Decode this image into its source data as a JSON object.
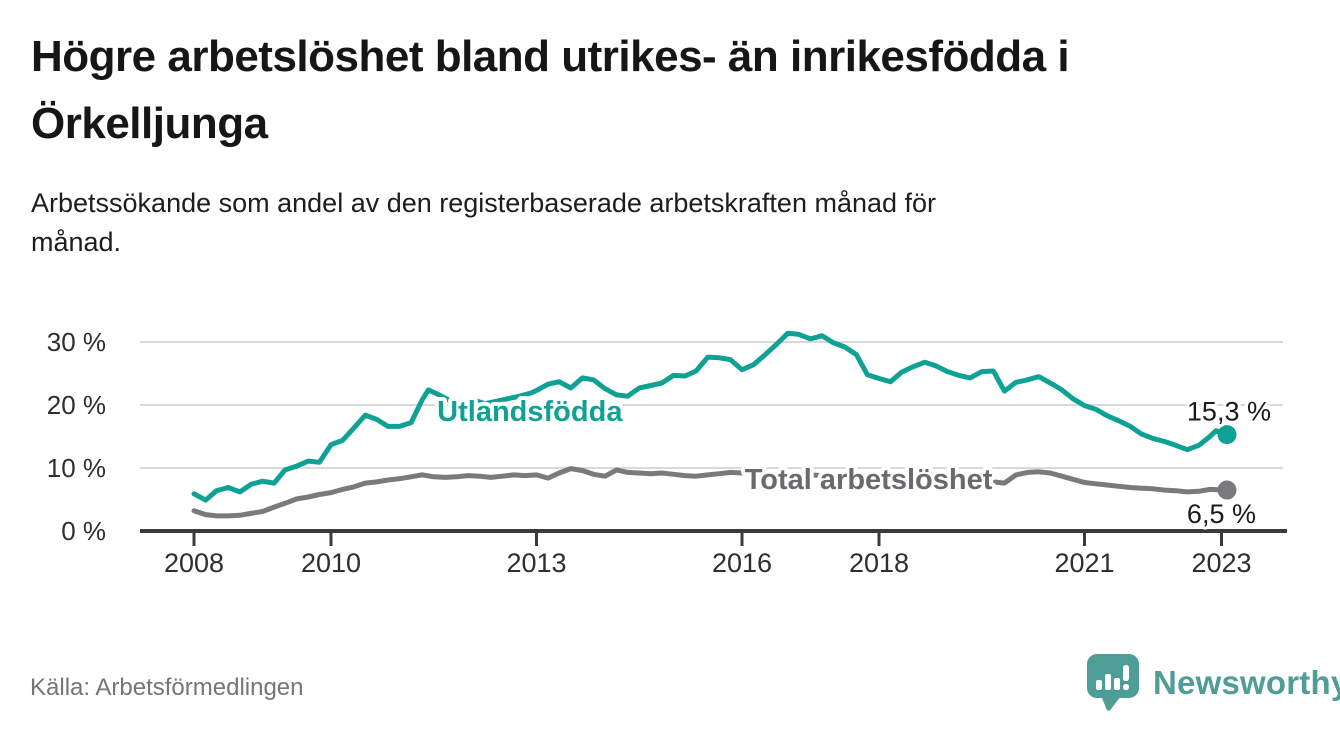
{
  "header": {
    "title": "Högre arbetslöshet bland utrikes- än inrikesfödda i Örkelljunga",
    "title_lines": [
      "Högre arbetslöshet bland utrikes- än inrikesfödda i",
      "Örkelljunga"
    ],
    "subtitle": "Arbetssökande som andel av den registerbaserade arbetskraften månad för månad.",
    "subtitle_lines": [
      "Arbetssökande som andel av den registerbaserade arbetskraften månad för",
      "månad."
    ]
  },
  "footer": {
    "source": "Källa: Arbetsförmedlingen",
    "logo_text": "Newsworthy",
    "logo_color": "#4f9d97"
  },
  "chart_data": {
    "type": "line",
    "unit": "%",
    "grid": "horizontal",
    "colors": {
      "grid": "#d9d9d9",
      "axis": "#3b3b3b",
      "tick_text": "#2e2e2e",
      "value_text": "#1b1b1b",
      "background": "#ffffff"
    },
    "x_axis": {
      "ticks": [
        2008,
        2010,
        2013,
        2016,
        2018,
        2021,
        2023
      ],
      "tick_labels": [
        "2008",
        "2010",
        "2013",
        "2016",
        "2018",
        "2021",
        "2023"
      ],
      "range": [
        2007.9,
        2023.8
      ]
    },
    "y_axis": {
      "ticks": [
        0,
        10,
        20,
        30
      ],
      "tick_labels": [
        "0 %",
        "10 %",
        "20 %",
        "30 %"
      ],
      "range": [
        0,
        33.5
      ]
    },
    "series": [
      {
        "name": "Utlandsfödda",
        "color": "#0FA294",
        "label_color": "#0FA294",
        "label_at": [
          2011.55,
          17.5
        ],
        "end_label": "15,3 %",
        "end_label_side": "above",
        "end_value": 15.3,
        "points": [
          [
            2008.0,
            5.9
          ],
          [
            2008.17,
            4.9
          ],
          [
            2008.33,
            6.4
          ],
          [
            2008.5,
            6.9
          ],
          [
            2008.67,
            6.2
          ],
          [
            2008.83,
            7.4
          ],
          [
            2009.0,
            7.9
          ],
          [
            2009.17,
            7.6
          ],
          [
            2009.33,
            9.7
          ],
          [
            2009.5,
            10.3
          ],
          [
            2009.67,
            11.1
          ],
          [
            2009.83,
            10.9
          ],
          [
            2010.0,
            13.7
          ],
          [
            2010.17,
            14.4
          ],
          [
            2010.33,
            16.3
          ],
          [
            2010.5,
            18.4
          ],
          [
            2010.67,
            17.7
          ],
          [
            2010.83,
            16.6
          ],
          [
            2011.0,
            16.6
          ],
          [
            2011.17,
            17.2
          ],
          [
            2011.33,
            20.8
          ],
          [
            2011.42,
            22.4
          ],
          [
            2011.58,
            21.6
          ],
          [
            2011.75,
            20.6
          ],
          [
            2011.92,
            20.2
          ],
          [
            2012.08,
            20.8
          ],
          [
            2012.25,
            20.2
          ],
          [
            2012.42,
            20.6
          ],
          [
            2012.58,
            21.0
          ],
          [
            2012.75,
            21.4
          ],
          [
            2012.92,
            21.9
          ],
          [
            2013.0,
            22.3
          ],
          [
            2013.17,
            23.3
          ],
          [
            2013.33,
            23.7
          ],
          [
            2013.5,
            22.7
          ],
          [
            2013.67,
            24.3
          ],
          [
            2013.83,
            24.0
          ],
          [
            2014.0,
            22.6
          ],
          [
            2014.17,
            21.6
          ],
          [
            2014.33,
            21.4
          ],
          [
            2014.5,
            22.7
          ],
          [
            2014.67,
            23.1
          ],
          [
            2014.83,
            23.5
          ],
          [
            2015.0,
            24.7
          ],
          [
            2015.17,
            24.6
          ],
          [
            2015.33,
            25.4
          ],
          [
            2015.5,
            27.6
          ],
          [
            2015.67,
            27.5
          ],
          [
            2015.83,
            27.2
          ],
          [
            2016.0,
            25.6
          ],
          [
            2016.17,
            26.4
          ],
          [
            2016.33,
            27.9
          ],
          [
            2016.5,
            29.6
          ],
          [
            2016.67,
            31.4
          ],
          [
            2016.83,
            31.2
          ],
          [
            2017.0,
            30.5
          ],
          [
            2017.17,
            31.0
          ],
          [
            2017.33,
            29.9
          ],
          [
            2017.5,
            29.2
          ],
          [
            2017.67,
            28.0
          ],
          [
            2017.83,
            24.8
          ],
          [
            2018.0,
            24.2
          ],
          [
            2018.17,
            23.7
          ],
          [
            2018.33,
            25.2
          ],
          [
            2018.5,
            26.1
          ],
          [
            2018.67,
            26.8
          ],
          [
            2018.83,
            26.2
          ],
          [
            2019.0,
            25.3
          ],
          [
            2019.17,
            24.7
          ],
          [
            2019.33,
            24.3
          ],
          [
            2019.5,
            25.3
          ],
          [
            2019.67,
            25.4
          ],
          [
            2019.83,
            22.2
          ],
          [
            2020.0,
            23.6
          ],
          [
            2020.17,
            24.0
          ],
          [
            2020.33,
            24.5
          ],
          [
            2020.5,
            23.5
          ],
          [
            2020.67,
            22.4
          ],
          [
            2020.83,
            21.0
          ],
          [
            2021.0,
            19.9
          ],
          [
            2021.17,
            19.3
          ],
          [
            2021.33,
            18.3
          ],
          [
            2021.5,
            17.5
          ],
          [
            2021.67,
            16.6
          ],
          [
            2021.83,
            15.4
          ],
          [
            2022.0,
            14.7
          ],
          [
            2022.17,
            14.2
          ],
          [
            2022.33,
            13.6
          ],
          [
            2022.5,
            12.9
          ],
          [
            2022.67,
            13.6
          ],
          [
            2022.83,
            15.0
          ],
          [
            2022.92,
            15.9
          ],
          [
            2023.08,
            15.3
          ]
        ]
      },
      {
        "name": "Total arbetslöshet",
        "color": "#7A7A7C",
        "label_color": "#6A6A6E",
        "label_at": [
          2016.04,
          6.67
        ],
        "end_label": "6,5 %",
        "end_label_side": "below",
        "end_value": 6.5,
        "points": [
          [
            2008.0,
            3.2
          ],
          [
            2008.17,
            2.6
          ],
          [
            2008.33,
            2.4
          ],
          [
            2008.5,
            2.4
          ],
          [
            2008.67,
            2.5
          ],
          [
            2008.83,
            2.8
          ],
          [
            2009.0,
            3.1
          ],
          [
            2009.17,
            3.8
          ],
          [
            2009.33,
            4.4
          ],
          [
            2009.5,
            5.1
          ],
          [
            2009.67,
            5.4
          ],
          [
            2009.83,
            5.8
          ],
          [
            2010.0,
            6.1
          ],
          [
            2010.17,
            6.6
          ],
          [
            2010.33,
            7.0
          ],
          [
            2010.5,
            7.6
          ],
          [
            2010.67,
            7.8
          ],
          [
            2010.83,
            8.1
          ],
          [
            2011.0,
            8.3
          ],
          [
            2011.17,
            8.6
          ],
          [
            2011.33,
            8.9
          ],
          [
            2011.5,
            8.6
          ],
          [
            2011.67,
            8.5
          ],
          [
            2011.83,
            8.6
          ],
          [
            2012.0,
            8.8
          ],
          [
            2012.17,
            8.7
          ],
          [
            2012.33,
            8.5
          ],
          [
            2012.5,
            8.7
          ],
          [
            2012.67,
            8.9
          ],
          [
            2012.83,
            8.8
          ],
          [
            2013.0,
            8.9
          ],
          [
            2013.17,
            8.4
          ],
          [
            2013.33,
            9.2
          ],
          [
            2013.5,
            9.9
          ],
          [
            2013.67,
            9.6
          ],
          [
            2013.83,
            9.0
          ],
          [
            2014.0,
            8.7
          ],
          [
            2014.17,
            9.7
          ],
          [
            2014.33,
            9.3
          ],
          [
            2014.5,
            9.2
          ],
          [
            2014.67,
            9.1
          ],
          [
            2014.83,
            9.2
          ],
          [
            2015.0,
            9.0
          ],
          [
            2015.17,
            8.8
          ],
          [
            2015.33,
            8.7
          ],
          [
            2015.5,
            8.9
          ],
          [
            2015.67,
            9.1
          ],
          [
            2015.83,
            9.3
          ],
          [
            2016.0,
            9.2
          ],
          [
            2016.17,
            9.0
          ],
          [
            2016.33,
            8.9
          ],
          [
            2016.5,
            9.0
          ],
          [
            2016.67,
            9.1
          ],
          [
            2016.83,
            9.0
          ],
          [
            2017.0,
            8.9
          ],
          [
            2017.17,
            8.8
          ],
          [
            2017.33,
            8.7
          ],
          [
            2017.5,
            8.6
          ],
          [
            2017.67,
            8.5
          ],
          [
            2017.83,
            8.4
          ],
          [
            2018.0,
            8.4
          ],
          [
            2018.17,
            8.3
          ],
          [
            2018.33,
            8.4
          ],
          [
            2018.5,
            8.5
          ],
          [
            2018.67,
            8.4
          ],
          [
            2018.83,
            8.3
          ],
          [
            2019.0,
            8.2
          ],
          [
            2019.17,
            8.1
          ],
          [
            2019.33,
            8.0
          ],
          [
            2019.5,
            7.9
          ],
          [
            2019.67,
            7.8
          ],
          [
            2019.83,
            7.6
          ],
          [
            2020.0,
            8.9
          ],
          [
            2020.17,
            9.3
          ],
          [
            2020.33,
            9.4
          ],
          [
            2020.5,
            9.2
          ],
          [
            2020.67,
            8.7
          ],
          [
            2020.83,
            8.2
          ],
          [
            2021.0,
            7.7
          ],
          [
            2021.17,
            7.5
          ],
          [
            2021.33,
            7.3
          ],
          [
            2021.5,
            7.1
          ],
          [
            2021.67,
            6.9
          ],
          [
            2021.83,
            6.8
          ],
          [
            2022.0,
            6.7
          ],
          [
            2022.17,
            6.5
          ],
          [
            2022.33,
            6.4
          ],
          [
            2022.5,
            6.2
          ],
          [
            2022.67,
            6.3
          ],
          [
            2022.83,
            6.6
          ],
          [
            2023.08,
            6.5
          ]
        ]
      }
    ]
  }
}
